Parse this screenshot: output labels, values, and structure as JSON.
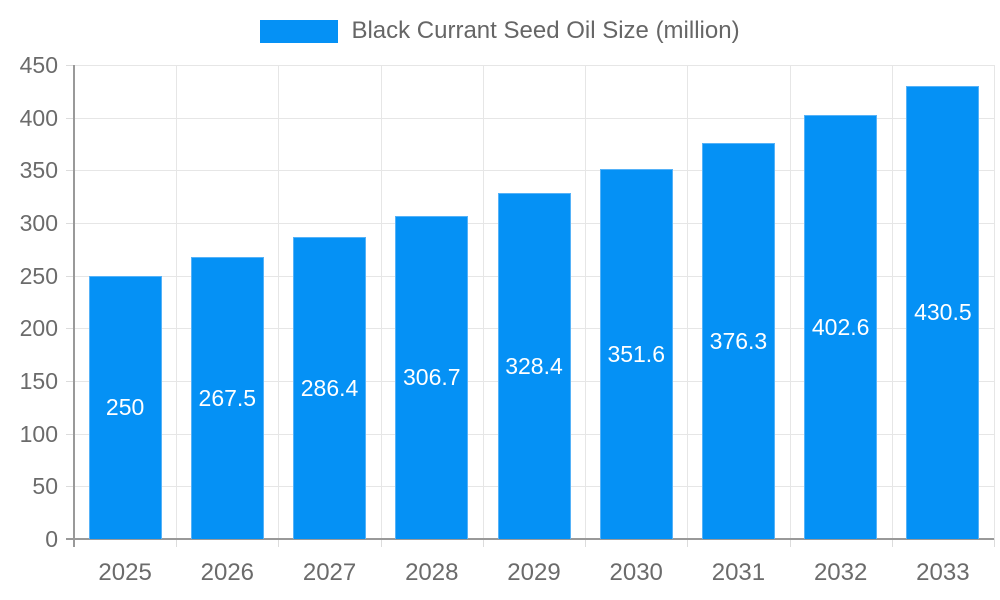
{
  "chart_data": {
    "type": "bar",
    "title": "Black Currant Seed Oil Size (million)",
    "categories": [
      "2025",
      "2026",
      "2027",
      "2028",
      "2029",
      "2030",
      "2031",
      "2032",
      "2033"
    ],
    "values": [
      250,
      267.5,
      286.4,
      306.7,
      328.4,
      351.6,
      376.3,
      402.6,
      430.5
    ],
    "value_labels": [
      "250",
      "267.5",
      "286.4",
      "306.7",
      "328.4",
      "351.6",
      "376.3",
      "402.6",
      "430.5"
    ],
    "y_ticks": [
      0,
      50,
      100,
      150,
      200,
      250,
      300,
      350,
      400,
      450
    ],
    "ylim": [
      0,
      450
    ],
    "xlabel": "",
    "ylabel": "",
    "grid": true,
    "legend_position": "top-center",
    "colors": {
      "bar": "#0591f5",
      "bar_border": "#55b2f8",
      "bar_label": "#ffffff",
      "grid": "#e6e6e6",
      "tick": "#dcdcdc",
      "axis": "#999999",
      "axis_text": "#6b6b6b",
      "legend_text": "#666666",
      "background": "#ffffff"
    }
  }
}
